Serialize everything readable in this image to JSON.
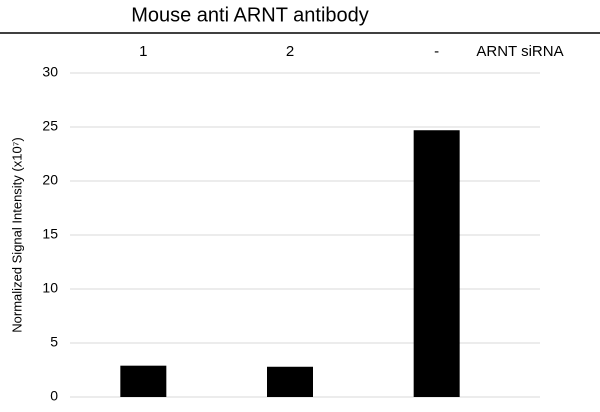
{
  "chart_data": {
    "type": "bar",
    "title": "Mouse anti ARNT antibody",
    "xlabel": "ARNT siRNA",
    "ylabel": "Normalized Signal Intensity (x10⁷)",
    "categories": [
      "1",
      "2",
      "-"
    ],
    "values": [
      2.9,
      2.8,
      24.7
    ],
    "color": "#000000",
    "ylim": [
      0,
      30
    ],
    "yticks": [
      0,
      5,
      10,
      15,
      20,
      25,
      30
    ],
    "grid": true
  }
}
